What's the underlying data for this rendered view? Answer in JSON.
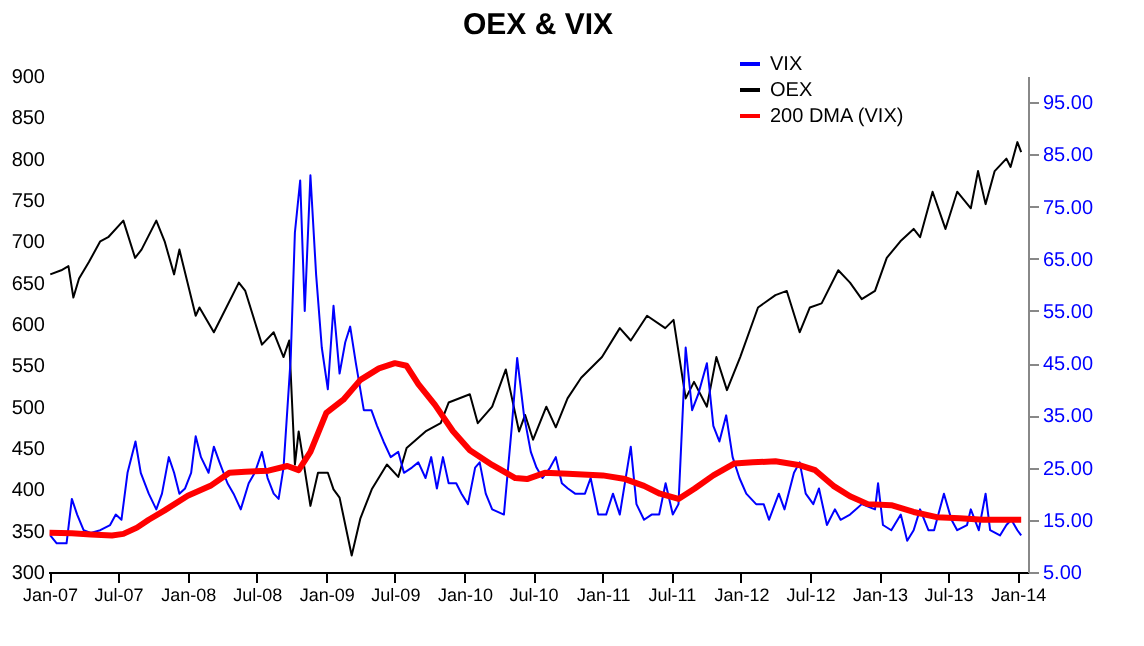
{
  "chart_data": {
    "type": "line",
    "title": "OEX & VIX",
    "xlim": [
      "2006-12-28",
      "2014-01-28"
    ],
    "xticks": [
      {
        "value": "2007-01-01",
        "label": "Jan-07"
      },
      {
        "value": "2007-07-01",
        "label": "Jul-07"
      },
      {
        "value": "2008-01-01",
        "label": "Jan-08"
      },
      {
        "value": "2008-07-01",
        "label": "Jul-08"
      },
      {
        "value": "2009-01-01",
        "label": "Jan-09"
      },
      {
        "value": "2009-07-01",
        "label": "Jul-09"
      },
      {
        "value": "2010-01-01",
        "label": "Jan-10"
      },
      {
        "value": "2010-07-01",
        "label": "Jul-10"
      },
      {
        "value": "2011-01-01",
        "label": "Jan-11"
      },
      {
        "value": "2011-07-01",
        "label": "Jul-11"
      },
      {
        "value": "2012-01-01",
        "label": "Jan-12"
      },
      {
        "value": "2012-07-01",
        "label": "Jul-12"
      },
      {
        "value": "2013-01-01",
        "label": "Jan-13"
      },
      {
        "value": "2013-07-01",
        "label": "Jul-13"
      },
      {
        "value": "2014-01-01",
        "label": "Jan-14"
      }
    ],
    "ylim": [
      300,
      900
    ],
    "yticks": [
      300,
      350,
      400,
      450,
      500,
      550,
      600,
      650,
      700,
      750,
      800,
      850,
      900
    ],
    "y2lim": [
      5,
      100
    ],
    "y2ticks": [
      {
        "value": 5,
        "label": "5.00"
      },
      {
        "value": 15,
        "label": "15.00"
      },
      {
        "value": 25,
        "label": "25.00"
      },
      {
        "value": 35,
        "label": "35.00"
      },
      {
        "value": 45,
        "label": "45.00"
      },
      {
        "value": 55,
        "label": "55.00"
      },
      {
        "value": 65,
        "label": "65.00"
      },
      {
        "value": 75,
        "label": "75.00"
      },
      {
        "value": 85,
        "label": "85.00"
      },
      {
        "value": 95,
        "label": "95.00"
      }
    ],
    "legend": "top right",
    "grid": false,
    "marker": "none",
    "series": [
      {
        "name": "VIX",
        "color": "#0000ff",
        "axis": "y2",
        "x": [
          "2007-01-03",
          "2007-01-20",
          "2007-02-15",
          "2007-03-01",
          "2007-03-15",
          "2007-04-01",
          "2007-04-20",
          "2007-05-15",
          "2007-06-10",
          "2007-06-25",
          "2007-07-10",
          "2007-07-26",
          "2007-08-16",
          "2007-08-30",
          "2007-09-20",
          "2007-10-10",
          "2007-10-25",
          "2007-11-12",
          "2007-11-26",
          "2007-12-10",
          "2007-12-25",
          "2008-01-10",
          "2008-01-22",
          "2008-02-05",
          "2008-02-25",
          "2008-03-10",
          "2008-03-25",
          "2008-04-15",
          "2008-05-01",
          "2008-05-20",
          "2008-06-10",
          "2008-06-26",
          "2008-07-15",
          "2008-07-30",
          "2008-08-15",
          "2008-08-28",
          "2008-09-10",
          "2008-09-29",
          "2008-10-10",
          "2008-10-24",
          "2008-11-05",
          "2008-11-20",
          "2008-12-05",
          "2008-12-20",
          "2009-01-05",
          "2009-01-20",
          "2009-02-05",
          "2009-02-20",
          "2009-03-05",
          "2009-03-20",
          "2009-04-10",
          "2009-04-30",
          "2009-05-15",
          "2009-06-01",
          "2009-06-20",
          "2009-07-10",
          "2009-07-25",
          "2009-08-15",
          "2009-09-01",
          "2009-09-20",
          "2009-10-05",
          "2009-10-20",
          "2009-11-05",
          "2009-11-20",
          "2009-12-10",
          "2009-12-24",
          "2010-01-10",
          "2010-01-29",
          "2010-02-10",
          "2010-02-26",
          "2010-03-15",
          "2010-04-15",
          "2010-05-06",
          "2010-05-20",
          "2010-06-07",
          "2010-06-25",
          "2010-07-10",
          "2010-07-26",
          "2010-08-15",
          "2010-08-30",
          "2010-09-15",
          "2010-10-01",
          "2010-10-20",
          "2010-11-15",
          "2010-11-30",
          "2010-12-20",
          "2011-01-10",
          "2011-01-28",
          "2011-02-15",
          "2011-03-16",
          "2011-03-31",
          "2011-04-20",
          "2011-05-10",
          "2011-05-30",
          "2011-06-16",
          "2011-07-05",
          "2011-07-20",
          "2011-08-08",
          "2011-08-25",
          "2011-09-10",
          "2011-10-03",
          "2011-10-20",
          "2011-11-05",
          "2011-11-23",
          "2011-12-10",
          "2011-12-28",
          "2012-01-15",
          "2012-02-10",
          "2012-03-01",
          "2012-03-15",
          "2012-04-10",
          "2012-04-25",
          "2012-05-20",
          "2012-06-04",
          "2012-06-20",
          "2012-07-10",
          "2012-07-25",
          "2012-08-15",
          "2012-09-05",
          "2012-09-20",
          "2012-10-15",
          "2012-11-15",
          "2012-12-20",
          "2012-12-28",
          "2013-01-10",
          "2013-02-01",
          "2013-02-26",
          "2013-03-15",
          "2013-04-01",
          "2013-04-18",
          "2013-05-10",
          "2013-05-25",
          "2013-06-20",
          "2013-07-10",
          "2013-07-25",
          "2013-08-20",
          "2013-08-30",
          "2013-09-20",
          "2013-10-08",
          "2013-10-20",
          "2013-11-15",
          "2013-12-02",
          "2013-12-15",
          "2013-12-31",
          "2014-01-10"
        ],
        "values": [
          12,
          10.5,
          10.5,
          19,
          16,
          13,
          12.5,
          13,
          14,
          16,
          15,
          24,
          30,
          24,
          20,
          17,
          20,
          27,
          24,
          20,
          21,
          24,
          31,
          27,
          24,
          29,
          26,
          22,
          20,
          17,
          22,
          24,
          28,
          23,
          20,
          19,
          25,
          46,
          70,
          80,
          55,
          81,
          62,
          48,
          40,
          56,
          43,
          49,
          52,
          45,
          36,
          36,
          33,
          30,
          27,
          28,
          24,
          25,
          26,
          23,
          27,
          21,
          27,
          22,
          22,
          20,
          18,
          25,
          26,
          20,
          17,
          16,
          33,
          46,
          35,
          28,
          25,
          23,
          25,
          27,
          22,
          21,
          20,
          20,
          23,
          16,
          16,
          20,
          16,
          29,
          18,
          15,
          16,
          16,
          22,
          16,
          18,
          48,
          36,
          39,
          45,
          33,
          30,
          35,
          27,
          23,
          20,
          18,
          18,
          15,
          20,
          17,
          24,
          26,
          20,
          18,
          21,
          14,
          17,
          15,
          16,
          18,
          17,
          22,
          14,
          13,
          16,
          11,
          13,
          17,
          13,
          13,
          20,
          15,
          13,
          14,
          17,
          13,
          20,
          13,
          12,
          14,
          15,
          13,
          12
        ]
      },
      {
        "name": "OEX",
        "color": "#000000",
        "x": [
          "2007-01-03",
          "2007-02-01",
          "2007-02-20",
          "2007-03-05",
          "2007-03-20",
          "2007-04-15",
          "2007-05-15",
          "2007-06-05",
          "2007-07-15",
          "2007-08-15",
          "2007-09-01",
          "2007-10-10",
          "2007-11-01",
          "2007-11-26",
          "2007-12-10",
          "2008-01-22",
          "2008-02-01",
          "2008-03-10",
          "2008-04-01",
          "2008-05-15",
          "2008-06-01",
          "2008-07-15",
          "2008-08-15",
          "2008-09-10",
          "2008-09-25",
          "2008-10-10",
          "2008-10-20",
          "2008-11-20",
          "2008-12-10",
          "2009-01-05",
          "2009-01-20",
          "2009-02-05",
          "2009-03-09",
          "2009-04-01",
          "2009-05-01",
          "2009-06-10",
          "2009-07-10",
          "2009-08-01",
          "2009-09-20",
          "2009-10-30",
          "2009-11-20",
          "2010-01-15",
          "2010-02-05",
          "2010-03-15",
          "2010-04-20",
          "2010-05-25",
          "2010-06-10",
          "2010-07-01",
          "2010-08-05",
          "2010-08-30",
          "2010-09-30",
          "2010-11-05",
          "2010-12-30",
          "2011-02-15",
          "2011-03-16",
          "2011-04-28",
          "2011-06-15",
          "2011-07-07",
          "2011-08-08",
          "2011-08-30",
          "2011-10-03",
          "2011-10-28",
          "2011-11-25",
          "2011-12-30",
          "2012-02-15",
          "2012-04-01",
          "2012-05-01",
          "2012-06-04",
          "2012-07-01",
          "2012-08-01",
          "2012-09-14",
          "2012-10-15",
          "2012-11-15",
          "2012-12-20",
          "2013-01-20",
          "2013-02-25",
          "2013-04-01",
          "2013-04-18",
          "2013-05-21",
          "2013-06-24",
          "2013-07-25",
          "2013-08-30",
          "2013-09-18",
          "2013-10-08",
          "2013-11-01",
          "2013-12-02",
          "2013-12-13",
          "2013-12-31",
          "2014-01-10"
        ],
        "values": [
          660,
          665,
          670,
          632,
          655,
          675,
          700,
          705,
          725,
          680,
          690,
          725,
          700,
          660,
          690,
          610,
          620,
          590,
          610,
          650,
          640,
          575,
          590,
          560,
          580,
          430,
          470,
          380,
          420,
          420,
          400,
          390,
          320,
          365,
          400,
          430,
          415,
          450,
          470,
          480,
          505,
          515,
          480,
          500,
          545,
          470,
          490,
          460,
          500,
          475,
          510,
          535,
          560,
          595,
          580,
          610,
          595,
          605,
          510,
          530,
          500,
          560,
          520,
          560,
          620,
          635,
          640,
          590,
          620,
          625,
          665,
          650,
          630,
          640,
          680,
          700,
          715,
          705,
          760,
          715,
          760,
          740,
          785,
          745,
          785,
          800,
          790,
          820,
          808
        ]
      },
      {
        "name": "200 DMA (VIX)",
        "color": "#ff0000",
        "axis": "y2",
        "x": [
          "2007-01-01",
          "2007-03-01",
          "2007-04-20",
          "2007-06-15",
          "2007-07-15",
          "2007-08-20",
          "2007-09-20",
          "2007-11-01",
          "2008-01-01",
          "2008-03-01",
          "2008-04-20",
          "2008-06-01",
          "2008-08-01",
          "2008-09-20",
          "2008-10-20",
          "2008-11-20",
          "2009-01-01",
          "2009-02-15",
          "2009-04-01",
          "2009-05-20",
          "2009-07-01",
          "2009-08-01",
          "2009-09-01",
          "2009-10-15",
          "2009-12-01",
          "2010-01-15",
          "2010-03-15",
          "2010-05-15",
          "2010-06-15",
          "2010-08-01",
          "2010-10-01",
          "2011-01-01",
          "2011-03-01",
          "2011-04-20",
          "2011-06-01",
          "2011-07-20",
          "2011-09-01",
          "2011-10-20",
          "2011-12-15",
          "2012-02-01",
          "2012-04-01",
          "2012-06-01",
          "2012-07-15",
          "2012-09-01",
          "2012-10-15",
          "2012-12-01",
          "2013-02-01",
          "2013-04-01",
          "2013-06-01",
          "2013-08-01",
          "2013-10-01",
          "2013-12-01",
          "2014-01-10"
        ],
        "values": [
          12.5,
          12.4,
          12.2,
          12,
          12.3,
          13.5,
          15,
          16.8,
          19.6,
          21.5,
          24,
          24.2,
          24.4,
          25.3,
          24.5,
          28,
          35.5,
          38,
          41.8,
          44,
          45,
          44.5,
          41,
          37,
          32,
          28.3,
          25.5,
          23,
          22.8,
          24,
          23.8,
          23.5,
          22.8,
          21.5,
          20,
          19,
          21,
          23.5,
          25.8,
          26,
          26.2,
          25.5,
          24.5,
          21.5,
          19.5,
          18,
          17.8,
          16.5,
          15.5,
          15.3,
          15,
          15,
          15
        ]
      }
    ]
  }
}
